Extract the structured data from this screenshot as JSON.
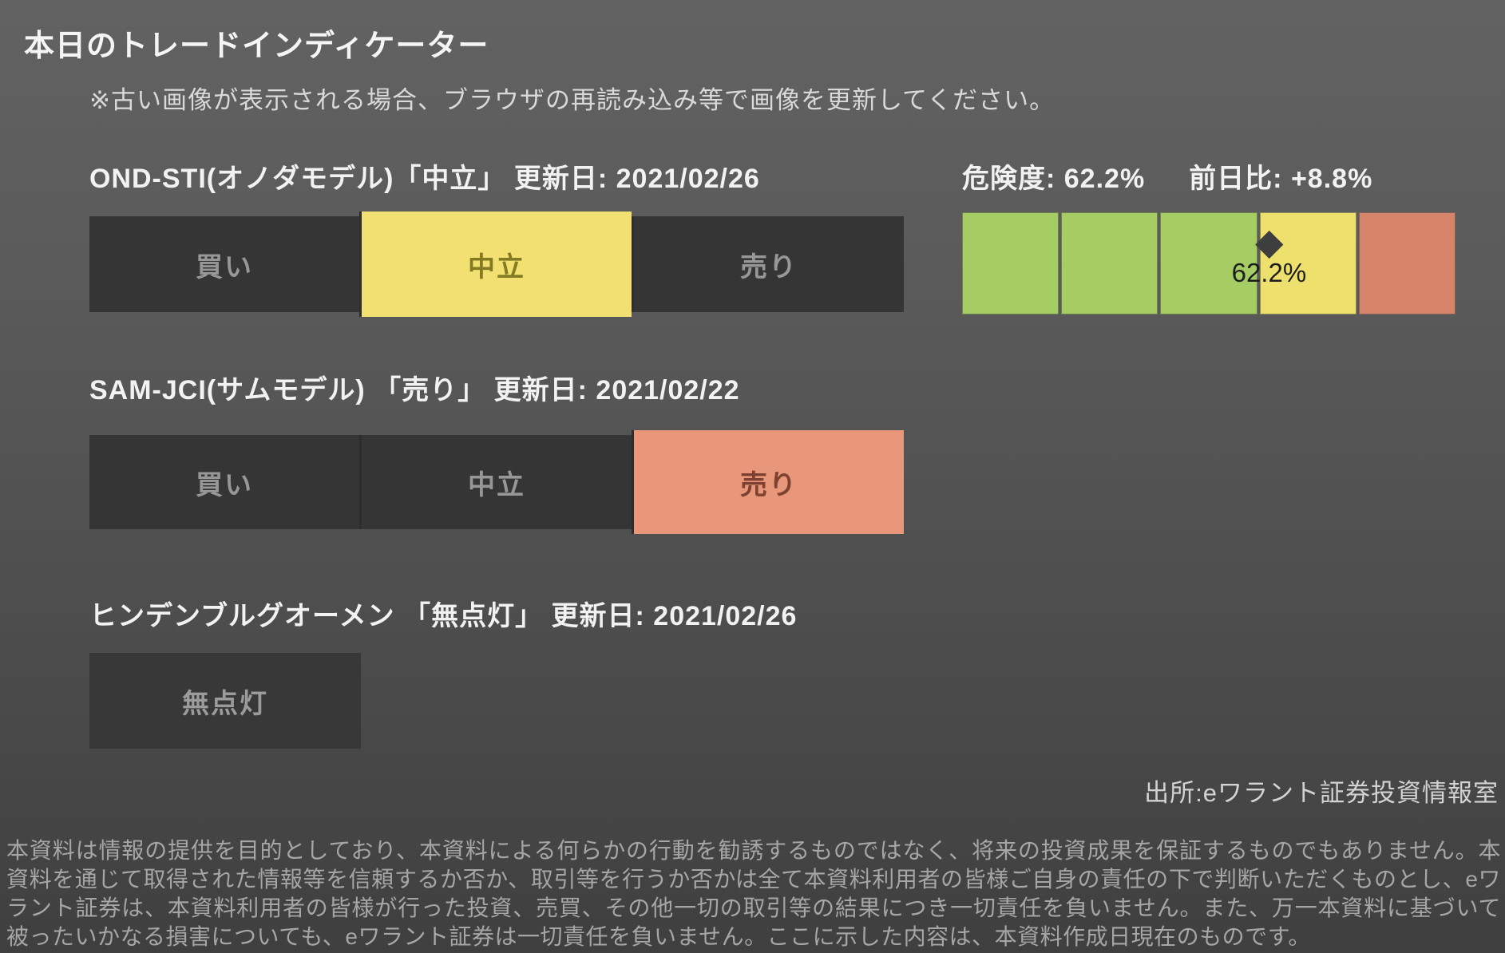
{
  "app": {
    "title": "本日のトレードインディケーター",
    "note": "※古い画像が表示される場合、ブラウザの再読み込み等で画像を更新してください。",
    "source": "出所:eワラント証券投資情報室",
    "disclaimer": "本資料は情報の提供を目的としており、本資料による何らかの行動を勧誘するものではなく、将来の投資成果を保証するものでもありません。本資料を通じて取得された情報等を信頼するか否か、取引等を行うか否かは全て本資料利用者の皆様ご自身の責任の下で判断いただくものとし、eワラント証券は、本資料利用者の皆様が行った投資、売買、その他一切の取引等の結果につき一切責任を負いません。また、万一本資料に基づいて被ったいかなる損害についても、eワラント証券は一切責任を負いません。ここに示した内容は、本資料作成日現在のものです。"
  },
  "indicators": [
    {
      "label": "OND-STI(オノダモデル)「中立」 更新日: 2021/02/26",
      "model": "OND-STI",
      "state": "中立",
      "updated": "2021/02/26",
      "segments": [
        {
          "label": "買い",
          "state": "inactive"
        },
        {
          "label": "中立",
          "state": "active-neutral"
        },
        {
          "label": "売り",
          "state": "inactive"
        }
      ]
    },
    {
      "label": "SAM-JCI(サムモデル) 「売り」 更新日: 2021/02/22",
      "model": "SAM-JCI",
      "state": "売り",
      "updated": "2021/02/22",
      "segments": [
        {
          "label": "買い",
          "state": "inactive"
        },
        {
          "label": "中立",
          "state": "inactive"
        },
        {
          "label": "売り",
          "state": "active-sell"
        }
      ]
    },
    {
      "label": "ヒンデンブルグオーメン 「無点灯」 更新日: 2021/02/26",
      "model": "ヒンデンブルグオーメン",
      "state": "無点灯",
      "updated": "2021/02/26",
      "segments": [
        {
          "label": "無点灯",
          "state": "inactive"
        }
      ]
    }
  ],
  "gauge": {
    "risk_label": "危険度: 62.2%",
    "change_label": "前日比: +8.8%",
    "value_pct": 62.2,
    "value_label": "62.2%",
    "range": [
      0,
      100
    ],
    "segment_colors": [
      "#a6cd63",
      "#a6cd63",
      "#a6cd63",
      "#eee06d",
      "#d7856a"
    ]
  },
  "colors": {
    "background_top": "#626262",
    "background_bottom": "#3f3f3f",
    "segment_inactive": "#353535",
    "segment_inactive_text": "#979797",
    "neutral_active": "#f2e172",
    "neutral_active_text": "#847a22",
    "sell_active": "#e9977b",
    "sell_active_text": "#7c4130",
    "gauge_green": "#a6cd63",
    "gauge_yellow": "#eee06d",
    "gauge_red": "#d7856a",
    "marker": "#3e3e3e"
  }
}
